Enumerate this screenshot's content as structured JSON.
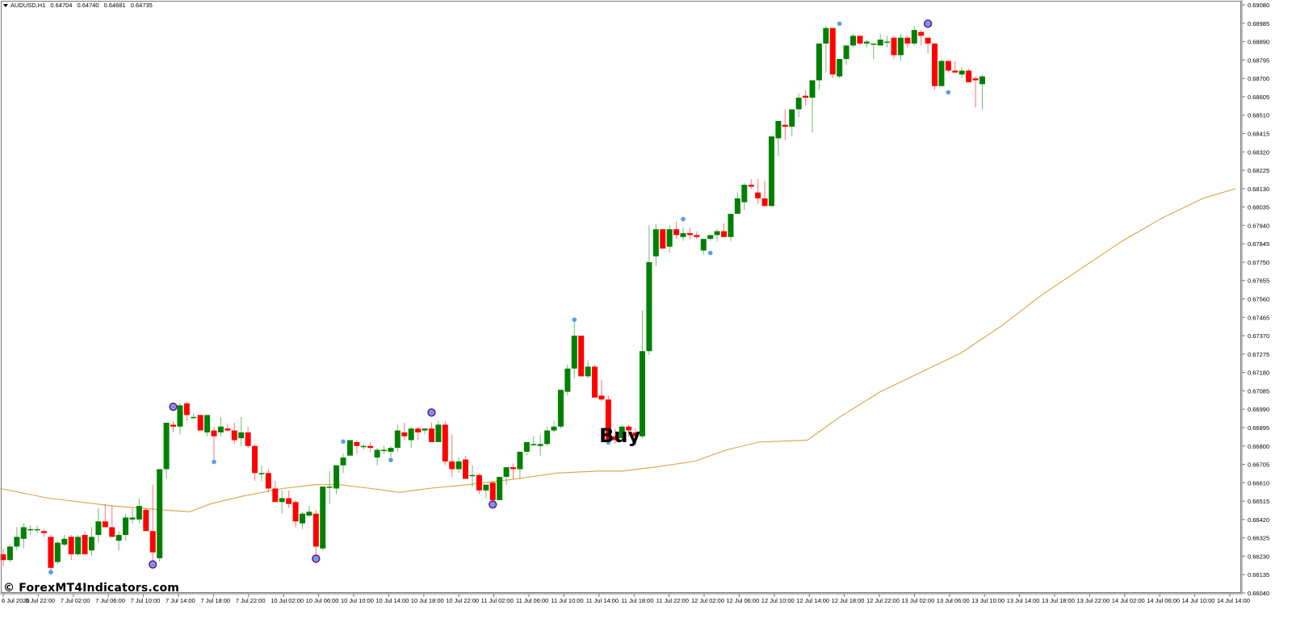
{
  "header": {
    "symbol": "AUDUSD,H1",
    "open": "0.64704",
    "high": "0.64740",
    "low": "0.64681",
    "close": "0.64735"
  },
  "watermark": "© ForexMT4Indicators.com",
  "signal_label": "Buy",
  "colors": {
    "bull": "#008000",
    "bear": "#ff0000",
    "ma_line": "#d9a441",
    "dot_blue": "#5b9bef",
    "ring_purple": "#6b1f8f",
    "axis": "#7a7a7a",
    "background": "#ffffff"
  },
  "price_axis": {
    "labels": [
      "0.69080",
      "0.68985",
      "0.68890",
      "0.68795",
      "0.68700",
      "0.68605",
      "0.68510",
      "0.68415",
      "0.68320",
      "0.68225",
      "0.68130",
      "0.68035",
      "0.67940",
      "0.67845",
      "0.67750",
      "0.67655",
      "0.67560",
      "0.67465",
      "0.67370",
      "0.67275",
      "0.67180",
      "0.67085",
      "0.66990",
      "0.66895",
      "0.66800",
      "0.66705",
      "0.66610",
      "0.66515",
      "0.66420",
      "0.66325",
      "0.66230",
      "0.66135",
      "0.66040"
    ],
    "max": 0.6908,
    "min": 0.6604
  },
  "time_axis": {
    "labels": [
      "6 Jul 2023",
      "6 Jul 22:00",
      "7 Jul 02:00",
      "7 Jul 06:00",
      "7 Jul 10:00",
      "7 Jul 14:00",
      "7 Jul 18:00",
      "7 Jul 22:00",
      "10 Jul 02:00",
      "10 Jul 06:00",
      "10 Jul 10:00",
      "10 Jul 14:00",
      "10 Jul 18:00",
      "10 Jul 22:00",
      "11 Jul 02:00",
      "11 Jul 06:00",
      "11 Jul 10:00",
      "11 Jul 14:00",
      "11 Jul 18:00",
      "11 Jul 22:00",
      "12 Jul 02:00",
      "12 Jul 06:00",
      "12 Jul 10:00",
      "12 Jul 14:00",
      "12 Jul 18:00",
      "12 Jul 22:00",
      "13 Jul 02:00",
      "13 Jul 06:00",
      "13 Jul 10:00",
      "13 Jul 14:00",
      "13 Jul 18:00",
      "13 Jul 22:00",
      "14 Jul 02:00",
      "14 Jul 06:00",
      "14 Jul 10:00",
      "14 Jul 14:00"
    ]
  },
  "chart_data": {
    "type": "candlestick",
    "title": "AUDUSD,H1",
    "xlabel": "",
    "ylabel": "",
    "ylim": [
      0.6604,
      0.6908
    ],
    "grid": false,
    "legend": "none",
    "x_start_label": "6 Jul 2023",
    "bar_interval": "1H",
    "candles": [
      [
        0.6624,
        0.6627,
        0.6618,
        0.6621
      ],
      [
        0.6621,
        0.6629,
        0.662,
        0.6628
      ],
      [
        0.6628,
        0.6638,
        0.6626,
        0.6633
      ],
      [
        0.6632,
        0.664,
        0.6627,
        0.6638
      ],
      [
        0.6637,
        0.6639,
        0.6634,
        0.6637
      ],
      [
        0.6637,
        0.6639,
        0.6635,
        0.6637
      ],
      [
        0.6636,
        0.6637,
        0.6633,
        0.6635
      ],
      [
        0.6633,
        0.6634,
        0.6615,
        0.6617
      ],
      [
        0.662,
        0.6631,
        0.6619,
        0.663
      ],
      [
        0.6629,
        0.6634,
        0.6628,
        0.6632
      ],
      [
        0.6633,
        0.6634,
        0.6621,
        0.6624
      ],
      [
        0.6624,
        0.6634,
        0.6623,
        0.6633
      ],
      [
        0.6634,
        0.6636,
        0.6624,
        0.6624
      ],
      [
        0.6626,
        0.6638,
        0.6623,
        0.6633
      ],
      [
        0.6634,
        0.6648,
        0.663,
        0.6641
      ],
      [
        0.6641,
        0.665,
        0.6638,
        0.6638
      ],
      [
        0.6638,
        0.6649,
        0.6633,
        0.6633
      ],
      [
        0.6631,
        0.6636,
        0.6626,
        0.6634
      ],
      [
        0.6634,
        0.6645,
        0.6631,
        0.6643
      ],
      [
        0.6642,
        0.6648,
        0.664,
        0.6643
      ],
      [
        0.6642,
        0.6653,
        0.664,
        0.6649
      ],
      [
        0.6647,
        0.6648,
        0.6636,
        0.6636
      ],
      [
        0.6636,
        0.666,
        0.662,
        0.6625
      ],
      [
        0.6622,
        0.6668,
        0.662,
        0.6668
      ],
      [
        0.6668,
        0.6686,
        0.6663,
        0.6692
      ],
      [
        0.6691,
        0.6693,
        0.6687,
        0.669
      ],
      [
        0.669,
        0.6702,
        0.6686,
        0.6701
      ],
      [
        0.6702,
        0.6703,
        0.6693,
        0.6696
      ],
      [
        0.6695,
        0.6697,
        0.6694,
        0.6695
      ],
      [
        0.6696,
        0.6696,
        0.6688,
        0.6688
      ],
      [
        0.6687,
        0.6696,
        0.6685,
        0.6696
      ],
      [
        0.6688,
        0.669,
        0.6673,
        0.6685
      ],
      [
        0.6687,
        0.6695,
        0.6685,
        0.669
      ],
      [
        0.6689,
        0.6691,
        0.6687,
        0.6688
      ],
      [
        0.6688,
        0.6692,
        0.6681,
        0.6683
      ],
      [
        0.6684,
        0.6695,
        0.668,
        0.6687
      ],
      [
        0.6687,
        0.669,
        0.6679,
        0.668
      ],
      [
        0.668,
        0.6681,
        0.6662,
        0.6666
      ],
      [
        0.6666,
        0.667,
        0.6662,
        0.6666
      ],
      [
        0.6666,
        0.6668,
        0.6656,
        0.6658
      ],
      [
        0.6658,
        0.6662,
        0.6653,
        0.6651
      ],
      [
        0.6651,
        0.6657,
        0.6645,
        0.6653
      ],
      [
        0.6653,
        0.6657,
        0.6648,
        0.665
      ],
      [
        0.6651,
        0.6652,
        0.6638,
        0.6641
      ],
      [
        0.664,
        0.6646,
        0.6637,
        0.6645
      ],
      [
        0.6644,
        0.6649,
        0.6643,
        0.6646
      ],
      [
        0.6645,
        0.6647,
        0.6624,
        0.6628
      ],
      [
        0.6627,
        0.6659,
        0.6626,
        0.6659
      ],
      [
        0.6659,
        0.6667,
        0.665,
        0.6659
      ],
      [
        0.6658,
        0.667,
        0.6655,
        0.667
      ],
      [
        0.667,
        0.6676,
        0.6666,
        0.6674
      ],
      [
        0.6675,
        0.6683,
        0.6675,
        0.6683
      ],
      [
        0.6682,
        0.6683,
        0.6676,
        0.668
      ],
      [
        0.668,
        0.6681,
        0.6678,
        0.668
      ],
      [
        0.668,
        0.6682,
        0.6677,
        0.6679
      ],
      [
        0.6674,
        0.6679,
        0.667,
        0.6678
      ],
      [
        0.6678,
        0.668,
        0.6676,
        0.6678
      ],
      [
        0.6677,
        0.668,
        0.6674,
        0.6679
      ],
      [
        0.6679,
        0.6691,
        0.6677,
        0.6688
      ],
      [
        0.6687,
        0.6692,
        0.6683,
        0.6685
      ],
      [
        0.6683,
        0.669,
        0.6679,
        0.6689
      ],
      [
        0.6689,
        0.669,
        0.6683,
        0.6687
      ],
      [
        0.6688,
        0.6689,
        0.6686,
        0.6689
      ],
      [
        0.6689,
        0.6692,
        0.6682,
        0.6682
      ],
      [
        0.6682,
        0.6693,
        0.6682,
        0.6691
      ],
      [
        0.6691,
        0.6693,
        0.667,
        0.6672
      ],
      [
        0.6672,
        0.6686,
        0.6664,
        0.6668
      ],
      [
        0.6668,
        0.6674,
        0.6666,
        0.6672
      ],
      [
        0.6673,
        0.6675,
        0.6664,
        0.6663
      ],
      [
        0.6665,
        0.667,
        0.6659,
        0.6665
      ],
      [
        0.6665,
        0.6666,
        0.6655,
        0.6657
      ],
      [
        0.6657,
        0.666,
        0.6653,
        0.666
      ],
      [
        0.6661,
        0.6662,
        0.665,
        0.6652
      ],
      [
        0.6652,
        0.6662,
        0.6652,
        0.6664
      ],
      [
        0.6664,
        0.6668,
        0.666,
        0.6669
      ],
      [
        0.6669,
        0.6671,
        0.6663,
        0.6668
      ],
      [
        0.6668,
        0.6677,
        0.6663,
        0.6677
      ],
      [
        0.6677,
        0.6681,
        0.6675,
        0.6682
      ],
      [
        0.6681,
        0.6685,
        0.668,
        0.6681
      ],
      [
        0.668,
        0.6686,
        0.6675,
        0.6681
      ],
      [
        0.6681,
        0.669,
        0.668,
        0.6688
      ],
      [
        0.6688,
        0.6693,
        0.6687,
        0.669
      ],
      [
        0.669,
        0.6705,
        0.6689,
        0.6709
      ],
      [
        0.6708,
        0.6722,
        0.6706,
        0.672
      ],
      [
        0.672,
        0.6744,
        0.6715,
        0.6737
      ],
      [
        0.6737,
        0.6737,
        0.6716,
        0.6716
      ],
      [
        0.6716,
        0.6724,
        0.6715,
        0.6721
      ],
      [
        0.6721,
        0.6722,
        0.6705,
        0.6705
      ],
      [
        0.6706,
        0.6714,
        0.6703,
        0.6704
      ],
      [
        0.6704,
        0.6706,
        0.6681,
        0.6683
      ],
      [
        0.6685,
        0.6689,
        0.6681,
        0.6683
      ],
      [
        0.6684,
        0.6691,
        0.6685,
        0.669
      ],
      [
        0.669,
        0.6691,
        0.6685,
        0.6688
      ],
      [
        0.6687,
        0.6689,
        0.668,
        0.6685
      ],
      [
        0.6685,
        0.675,
        0.6684,
        0.6729
      ],
      [
        0.6729,
        0.6794,
        0.6727,
        0.6775
      ],
      [
        0.6778,
        0.6795,
        0.6773,
        0.6792
      ],
      [
        0.6792,
        0.6792,
        0.6784,
        0.6782
      ],
      [
        0.6783,
        0.6794,
        0.678,
        0.6792
      ],
      [
        0.6792,
        0.6796,
        0.6787,
        0.6789
      ],
      [
        0.6788,
        0.6793,
        0.6786,
        0.679
      ],
      [
        0.679,
        0.6793,
        0.6787,
        0.6789
      ],
      [
        0.6789,
        0.6791,
        0.6787,
        0.6788
      ],
      [
        0.6781,
        0.6787,
        0.6779,
        0.6787
      ],
      [
        0.6787,
        0.6789,
        0.6786,
        0.6789
      ],
      [
        0.6789,
        0.6792,
        0.6786,
        0.6791
      ],
      [
        0.6791,
        0.6795,
        0.6788,
        0.6788
      ],
      [
        0.6788,
        0.68,
        0.6786,
        0.68
      ],
      [
        0.68,
        0.6811,
        0.68,
        0.6808
      ],
      [
        0.6806,
        0.6816,
        0.6802,
        0.6815
      ],
      [
        0.6815,
        0.6818,
        0.6813,
        0.6814
      ],
      [
        0.6811,
        0.6818,
        0.6805,
        0.6808
      ],
      [
        0.6808,
        0.6817,
        0.6805,
        0.6804
      ],
      [
        0.6804,
        0.684,
        0.6804,
        0.684
      ],
      [
        0.6839,
        0.6841,
        0.683,
        0.6848
      ],
      [
        0.6846,
        0.6854,
        0.6838,
        0.6845
      ],
      [
        0.6845,
        0.6854,
        0.684,
        0.6854
      ],
      [
        0.6854,
        0.6862,
        0.685,
        0.686
      ],
      [
        0.6861,
        0.6864,
        0.6856,
        0.686
      ],
      [
        0.686,
        0.6862,
        0.6842,
        0.6869
      ],
      [
        0.6869,
        0.6888,
        0.6864,
        0.6888
      ],
      [
        0.6888,
        0.6897,
        0.6873,
        0.6896
      ],
      [
        0.6896,
        0.6896,
        0.687,
        0.6872
      ],
      [
        0.6871,
        0.688,
        0.687,
        0.688
      ],
      [
        0.688,
        0.6887,
        0.6877,
        0.6887
      ],
      [
        0.6887,
        0.6893,
        0.6886,
        0.6892
      ],
      [
        0.6892,
        0.6892,
        0.6887,
        0.6888
      ],
      [
        0.6888,
        0.689,
        0.6886,
        0.6889
      ],
      [
        0.6888,
        0.6888,
        0.688,
        0.6888
      ],
      [
        0.6887,
        0.6893,
        0.6887,
        0.689
      ],
      [
        0.6889,
        0.6892,
        0.6886,
        0.6889
      ],
      [
        0.6891,
        0.6892,
        0.688,
        0.6882
      ],
      [
        0.6882,
        0.6893,
        0.6879,
        0.6891
      ],
      [
        0.6891,
        0.6892,
        0.6886,
        0.6888
      ],
      [
        0.6888,
        0.6897,
        0.6887,
        0.6895
      ],
      [
        0.6894,
        0.6895,
        0.6887,
        0.6892
      ],
      [
        0.6891,
        0.6891,
        0.6883,
        0.6888
      ],
      [
        0.6888,
        0.6888,
        0.6864,
        0.6866
      ],
      [
        0.6866,
        0.688,
        0.6866,
        0.6879
      ],
      [
        0.6879,
        0.6879,
        0.6873,
        0.6874
      ],
      [
        0.6874,
        0.6879,
        0.6873,
        0.6873
      ],
      [
        0.6872,
        0.6876,
        0.687,
        0.6874
      ],
      [
        0.6874,
        0.6875,
        0.6868,
        0.6868
      ],
      [
        0.687,
        0.6871,
        0.6855,
        0.6869
      ],
      [
        0.6867,
        0.6872,
        0.6854,
        0.6871
      ]
    ],
    "moving_average": [
      [
        0,
        0.6658
      ],
      [
        60,
        0.6653
      ],
      [
        140,
        0.6649
      ],
      [
        200,
        0.6647
      ],
      [
        235,
        0.6646
      ],
      [
        260,
        0.665
      ],
      [
        300,
        0.6654
      ],
      [
        350,
        0.6658
      ],
      [
        390,
        0.666
      ],
      [
        420,
        0.666
      ],
      [
        460,
        0.6658
      ],
      [
        495,
        0.6656
      ],
      [
        530,
        0.6658
      ],
      [
        580,
        0.666
      ],
      [
        640,
        0.6663
      ],
      [
        690,
        0.6666
      ],
      [
        740,
        0.6667
      ],
      [
        770,
        0.6667
      ],
      [
        810,
        0.6669
      ],
      [
        860,
        0.6672
      ],
      [
        900,
        0.6678
      ],
      [
        940,
        0.6682
      ],
      [
        1000,
        0.6683
      ],
      [
        1040,
        0.6695
      ],
      [
        1090,
        0.6708
      ],
      [
        1140,
        0.6718
      ],
      [
        1190,
        0.6728
      ],
      [
        1240,
        0.6742
      ],
      [
        1290,
        0.6758
      ],
      [
        1340,
        0.6772
      ],
      [
        1390,
        0.6786
      ],
      [
        1440,
        0.6798
      ],
      [
        1490,
        0.6808
      ],
      [
        1530,
        0.6813
      ]
    ],
    "signals": {
      "blue_dots": [
        {
          "bar": 7,
          "price": 0.6616,
          "pos": "below"
        },
        {
          "bar": 22,
          "price": 0.662,
          "pos": "below"
        },
        {
          "bar": 25,
          "price": 0.6699,
          "pos": "above"
        },
        {
          "bar": 31,
          "price": 0.6673,
          "pos": "below"
        },
        {
          "bar": 46,
          "price": 0.6623,
          "pos": "below"
        },
        {
          "bar": 50,
          "price": 0.6681,
          "pos": "above"
        },
        {
          "bar": 57,
          "price": 0.6674,
          "pos": "below"
        },
        {
          "bar": 63,
          "price": 0.6696,
          "pos": "above"
        },
        {
          "bar": 72,
          "price": 0.6651,
          "pos": "below"
        },
        {
          "bar": 84,
          "price": 0.6744,
          "pos": "above"
        },
        {
          "bar": 89,
          "price": 0.6683,
          "pos": "below"
        },
        {
          "bar": 100,
          "price": 0.6796,
          "pos": "above"
        },
        {
          "bar": 104,
          "price": 0.6781,
          "pos": "below"
        },
        {
          "bar": 123,
          "price": 0.6897,
          "pos": "above"
        },
        {
          "bar": 136,
          "price": 0.6897,
          "pos": "above"
        },
        {
          "bar": 139,
          "price": 0.6864,
          "pos": "below"
        }
      ],
      "purple_rings": [
        22,
        25,
        46,
        63,
        72,
        136
      ],
      "buy_label_bar": 86
    }
  }
}
